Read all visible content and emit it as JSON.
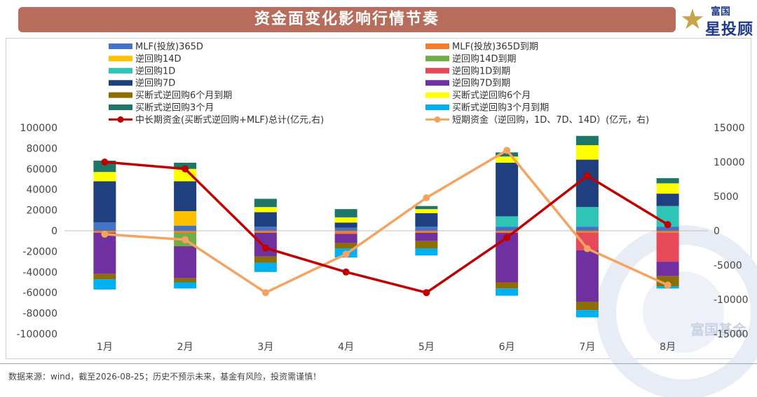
{
  "header": {
    "title": "资金面变化影响行情节奏",
    "logo_top": "富国",
    "logo_main": "星投顾",
    "logo_icon": "star-icon"
  },
  "watermark": {
    "text": "富国基金"
  },
  "footer": {
    "note": "数据来源：wind，截至2026-08-25；历史不预示未来，基金有风险，投资需谨慎！"
  },
  "chart_data": {
    "type": "bar",
    "stacked": true,
    "categories": [
      "1月",
      "2月",
      "3月",
      "4月",
      "5月",
      "6月",
      "7月",
      "8月"
    ],
    "ylim_left": [
      -100000,
      100000
    ],
    "yticks_left": [
      "100000",
      "80000",
      "60000",
      "40000",
      "20000",
      "0",
      "-20000",
      "-40000",
      "-60000",
      "-80000",
      "-100000"
    ],
    "ylim_right": [
      -15000,
      15000
    ],
    "yticks_right": [
      "15000",
      "10000",
      "5000",
      "0",
      "-5000",
      "-10000",
      "-15000"
    ],
    "legend_position": "top",
    "bar_series": [
      {
        "name": "MLF(投放)365D",
        "color": "#4472c4",
        "values": [
          8000,
          5000,
          4000,
          3000,
          4000,
          4000,
          4000,
          4000
        ]
      },
      {
        "name": "MLF(投放)365D到期",
        "color": "#ed7d31",
        "values": [
          -2000,
          -2000,
          -2000,
          -3000,
          -2000,
          -2000,
          -2000,
          -2000
        ]
      },
      {
        "name": "逆回购14D",
        "color": "#ffc000",
        "values": [
          0,
          14000,
          0,
          0,
          0,
          0,
          0,
          0
        ]
      },
      {
        "name": "逆回购14D到期",
        "color": "#70ad47",
        "values": [
          0,
          -13000,
          0,
          0,
          0,
          0,
          0,
          0
        ]
      },
      {
        "name": "逆回购1D",
        "color": "#2ec4b6",
        "values": [
          0,
          0,
          0,
          0,
          0,
          10000,
          19000,
          20000
        ]
      },
      {
        "name": "逆回购1D到期",
        "color": "#e64a5a",
        "values": [
          0,
          0,
          0,
          0,
          0,
          0,
          -17000,
          -28000
        ]
      },
      {
        "name": "逆回购7D",
        "color": "#1f3f7f",
        "values": [
          40000,
          29000,
          14000,
          5000,
          13000,
          52000,
          46000,
          12000
        ]
      },
      {
        "name": "逆回购7D到期",
        "color": "#7030a0",
        "values": [
          -40000,
          -31000,
          -23000,
          -9000,
          -8000,
          -48000,
          -50000,
          -14000
        ]
      },
      {
        "name": "买断式逆回购6个月到期",
        "color": "#8f6e00",
        "values": [
          -5000,
          -4000,
          -6000,
          -5000,
          -7000,
          -6000,
          -8000,
          -10000
        ]
      },
      {
        "name": "买断式逆回购6个月",
        "color": "#ffff00",
        "values": [
          9000,
          12000,
          5000,
          5000,
          4000,
          6000,
          14000,
          10000
        ]
      },
      {
        "name": "买断式逆回购3个月",
        "color": "#1e7668",
        "values": [
          11000,
          6000,
          8000,
          8000,
          3000,
          4000,
          9000,
          5000
        ]
      },
      {
        "name": "买断式逆回购3个月到期",
        "color": "#00b0f0",
        "values": [
          -10000,
          -6000,
          -9000,
          -9000,
          -7000,
          -7000,
          -7000,
          -2000
        ]
      }
    ],
    "line_series": [
      {
        "name": "中长期资金(买断式逆回购+MLF)总计(亿元,右)",
        "color": "#c00000",
        "axis": "right",
        "values": [
          10000,
          9000,
          -2500,
          -6000,
          -9000,
          -1000,
          8000,
          900
        ]
      },
      {
        "name": "短期资金（逆回购，1D、7D、14D）(亿元，右)",
        "color": "#f4a460",
        "axis": "right",
        "values": [
          -500,
          -1300,
          -9000,
          -3400,
          4800,
          11700,
          -2600,
          -7900
        ]
      }
    ]
  }
}
